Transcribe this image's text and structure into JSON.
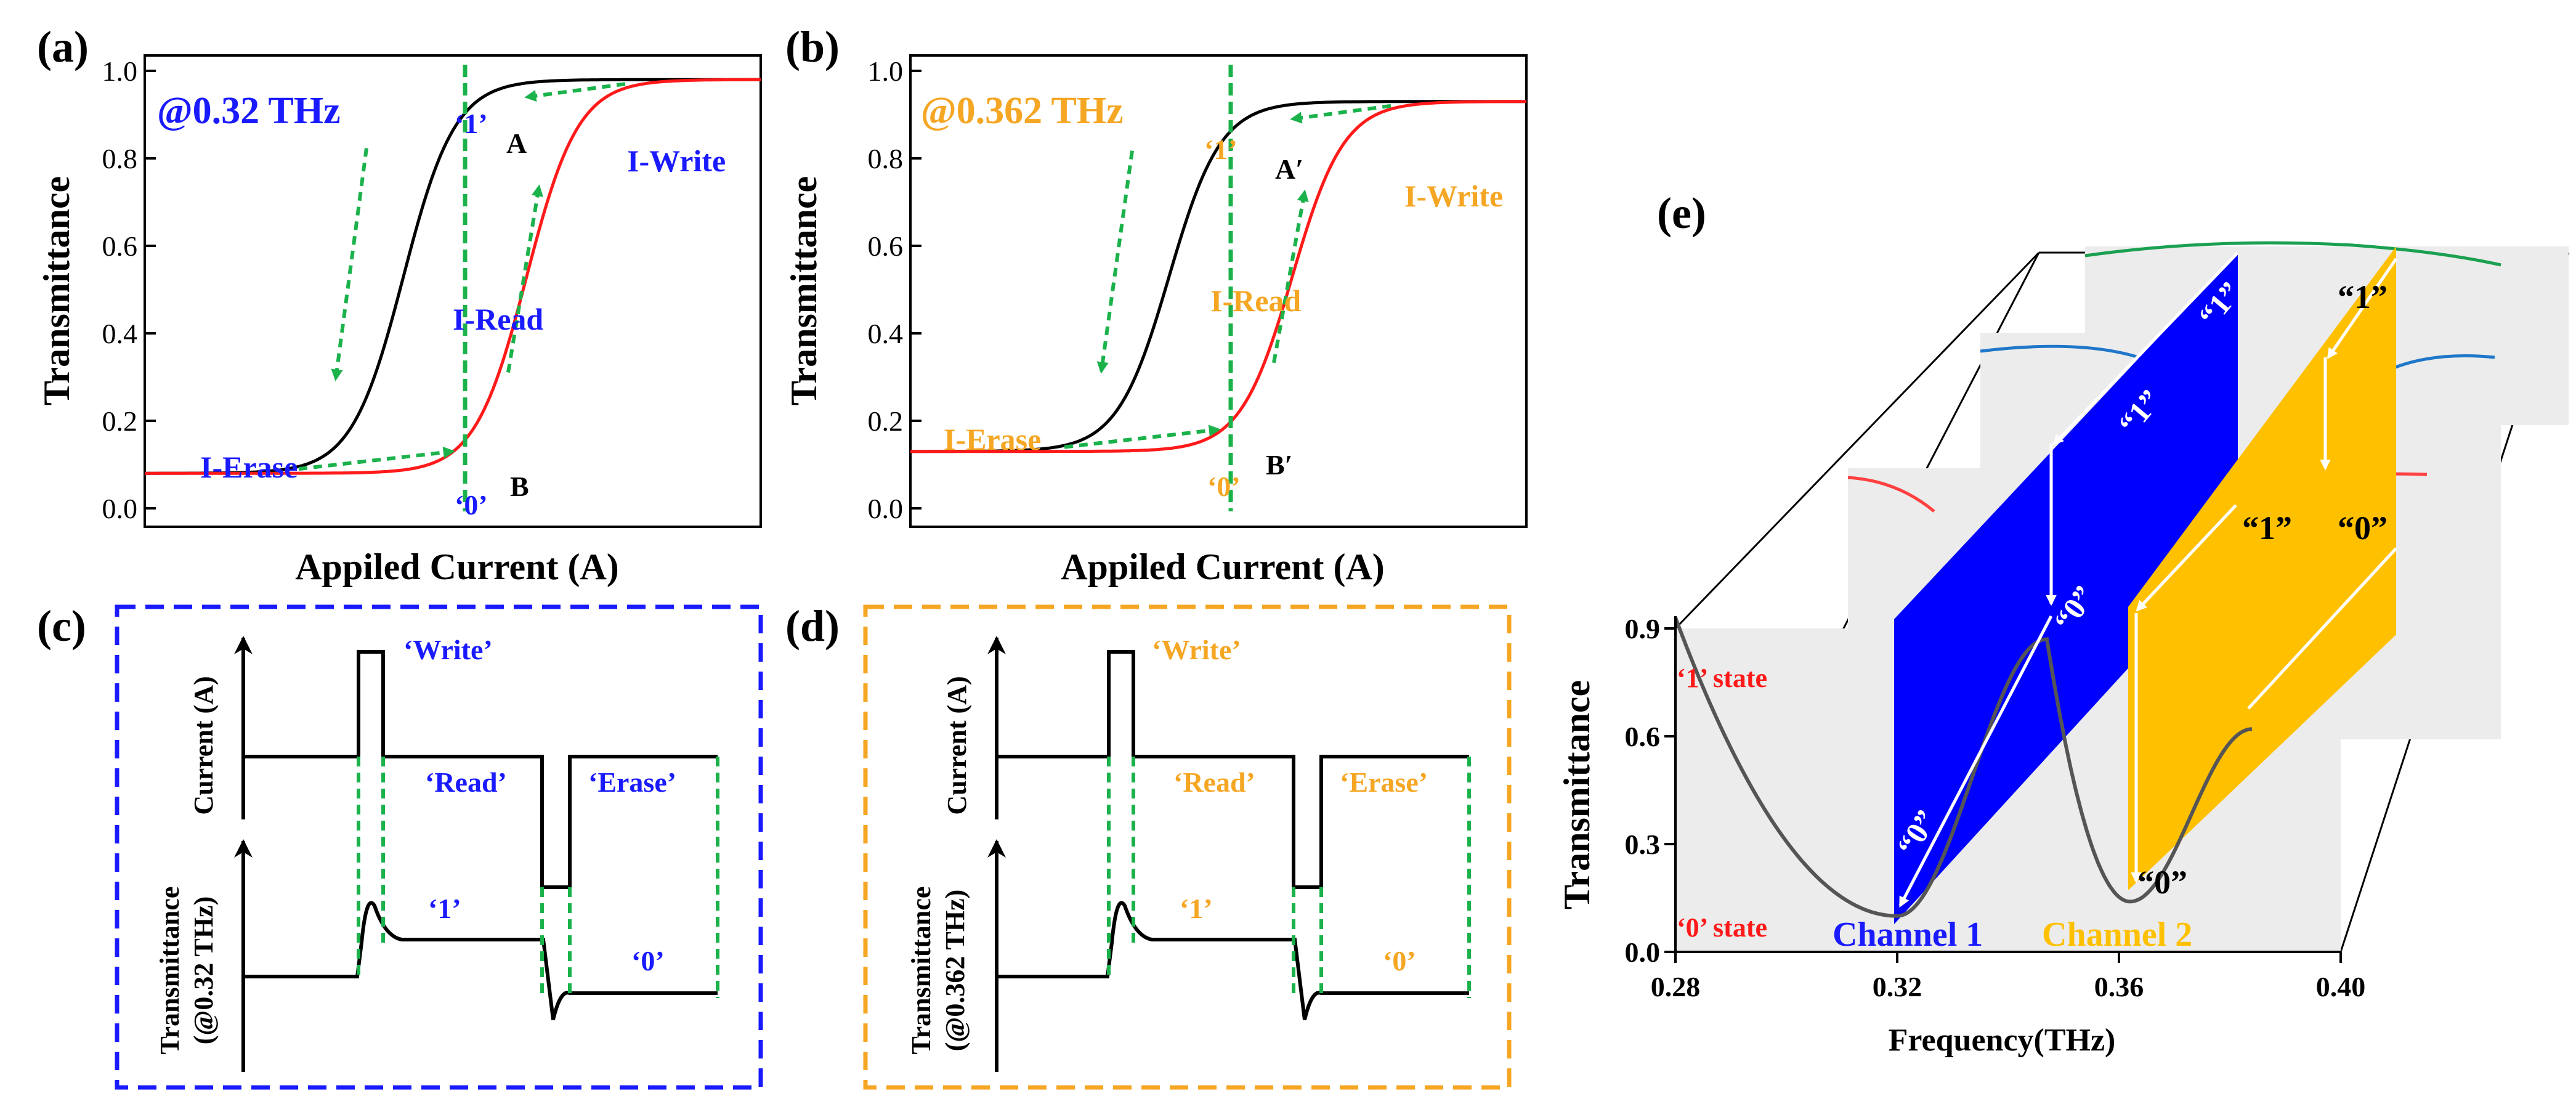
{
  "colors": {
    "black": "#000000",
    "red": "#ff1a1a",
    "green": "#1bb24b",
    "blue": "#1a1aff",
    "orange": "#f5a623",
    "channel1": "#0000ff",
    "channel2": "#ffc000",
    "plane": "#ebebeb",
    "curve_blue": "#1f77c9",
    "curve_green": "#1aa050",
    "curve_red": "#ff4040",
    "dip_gray": "#555555"
  },
  "chart_data": [
    {
      "id": "a",
      "type": "line",
      "panel_label": "(a)",
      "title": "@0.32 THz",
      "xlabel": "Appiled Current (A)",
      "ylabel": "Transmittance",
      "ylim": [
        0,
        1.0
      ],
      "yticks": [
        "0.0",
        "0.2",
        "0.4",
        "0.6",
        "0.8",
        "1.0"
      ],
      "x_range": [
        0,
        100
      ],
      "series": [
        {
          "name": "I-Erase (black)",
          "low": 0.08,
          "high": 0.98,
          "center": 42,
          "width": 4.2
        },
        {
          "name": "I-Write (red)",
          "low": 0.08,
          "high": 0.98,
          "center": 62,
          "width": 4.2
        }
      ],
      "read_current": 52,
      "labels": {
        "state1": "‘1’",
        "state0": "‘0’",
        "pointA": "A",
        "pointB": "B",
        "write": "I-Write",
        "read": "I-Read",
        "erase": "I-Erase"
      }
    },
    {
      "id": "b",
      "type": "line",
      "panel_label": "(b)",
      "title": "@0.362 THz",
      "xlabel": "Appiled Current (A)",
      "ylabel": "Transmittance",
      "ylim": [
        0,
        1.0
      ],
      "yticks": [
        "0.0",
        "0.2",
        "0.4",
        "0.6",
        "0.8",
        "1.0"
      ],
      "x_range": [
        0,
        100
      ],
      "series": [
        {
          "name": "I-Erase (black)",
          "low": 0.13,
          "high": 0.93,
          "center": 42,
          "width": 4.2
        },
        {
          "name": "I-Write (red)",
          "low": 0.13,
          "high": 0.93,
          "center": 62,
          "width": 4.2
        }
      ],
      "read_current": 52,
      "labels": {
        "state1": "‘1’",
        "state0": "‘0’",
        "pointA": "A′",
        "pointB": "B′",
        "write": "I-Write",
        "read": "I-Read",
        "erase": "I-Erase"
      }
    },
    {
      "id": "e",
      "type": "line",
      "panel_label": "(e)",
      "xlabel": "Frequency(THz)",
      "ylabel": "Transmittance",
      "xlim": [
        0.28,
        0.4
      ],
      "ylim": [
        0.0,
        0.9
      ],
      "xticks": [
        "0.28",
        "0.32",
        "0.36",
        "0.40"
      ],
      "yticks": [
        "0.0",
        "0.3",
        "0.6",
        "0.9"
      ],
      "dips": [
        {
          "name": "Channel 1",
          "frequency": 0.32,
          "min": 0.1
        },
        {
          "name": "Channel 2",
          "frequency": 0.362,
          "min": 0.14
        }
      ],
      "peak_between": {
        "frequency": 0.347,
        "value": 0.87
      },
      "edge_value": {
        "frequency": 0.28,
        "value": 0.93
      },
      "state_labels": {
        "one": "‘1’ state",
        "zero": "‘0’ state"
      },
      "bit_labels": {
        "ch1_one": "“1”",
        "ch1_zero": "“0”",
        "ch2_one": "“1”",
        "ch2_zero": "“0”"
      }
    }
  ],
  "panel_c": {
    "label": "(c)",
    "current_axis": "Current (A)",
    "trans_axis_line1": "Transmittance",
    "trans_axis_line2": "(@0.32 THz)",
    "write": "‘Write’",
    "read": "‘Read’",
    "erase": "‘Erase’",
    "one": "‘1’",
    "zero": "‘0’"
  },
  "panel_d": {
    "label": "(d)",
    "current_axis": "Current (A)",
    "trans_axis_line1": "Transmittance",
    "trans_axis_line2": "(@0.362 THz)",
    "write": "‘Write’",
    "read": "‘Read’",
    "erase": "‘Erase’",
    "one": "‘1’",
    "zero": "‘0’"
  }
}
